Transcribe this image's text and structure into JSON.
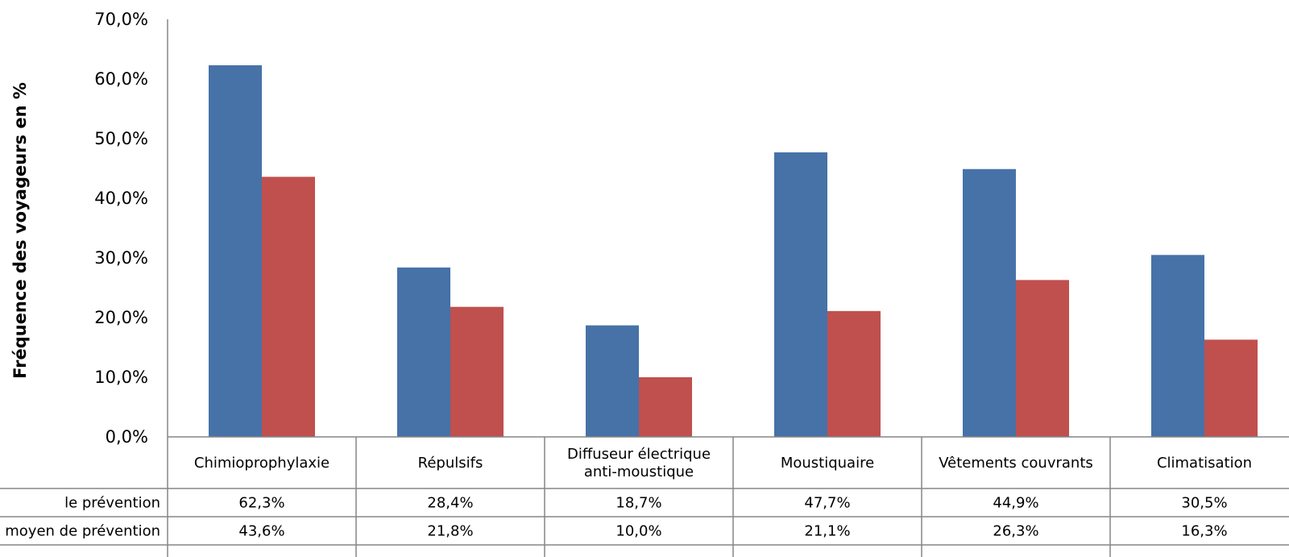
{
  "chart_data": {
    "type": "bar",
    "ylabel": "Fréquence des voyageurs en %",
    "xlabel": "",
    "ylim": [
      0,
      70
    ],
    "yticks": [
      "0,0%",
      "10,0%",
      "20,0%",
      "30,0%",
      "40,0%",
      "50,0%",
      "60,0%",
      "70,0%"
    ],
    "grid": false,
    "legend": "data-table",
    "categories": [
      [
        "Chimioprophylaxie"
      ],
      [
        "Répulsifs"
      ],
      [
        "Diffuseur électrique",
        "anti-moustique"
      ],
      [
        "Moustiquaire"
      ],
      [
        "Vêtements couvrants"
      ],
      [
        "Climatisation"
      ]
    ],
    "series": [
      {
        "name": "le prévention",
        "color": "#4672A8",
        "values": [
          62.3,
          28.4,
          18.7,
          47.7,
          44.9,
          30.5
        ],
        "labels": [
          "62,3%",
          "28,4%",
          "18,7%",
          "47,7%",
          "44,9%",
          "30,5%"
        ]
      },
      {
        "name": "moyen de prévention",
        "color": "#C0504D",
        "values": [
          43.6,
          21.8,
          10.0,
          21.1,
          26.3,
          16.3
        ],
        "labels": [
          "43,6%",
          "21,8%",
          "10,0%",
          "21,1%",
          "26,3%",
          "16,3%"
        ]
      }
    ]
  }
}
